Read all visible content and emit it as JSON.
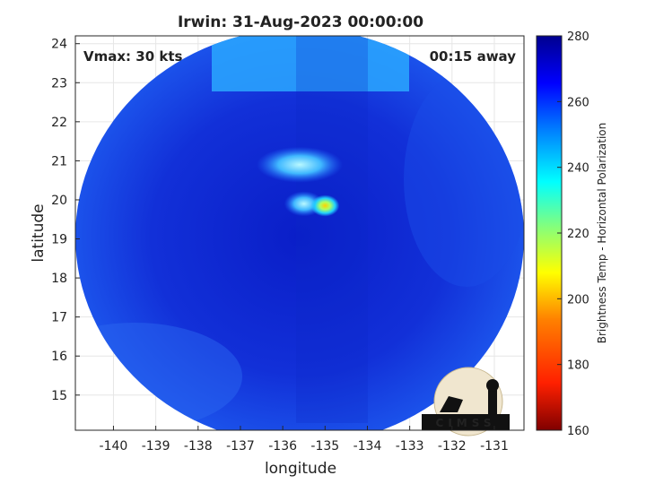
{
  "chart_data": {
    "type": "heatmap",
    "title": "Irwin: 31-Aug-2023 00:00:00",
    "xlabel": "longitude",
    "ylabel": "latitude",
    "x_ticks": [
      -140,
      -139,
      -138,
      -137,
      -136,
      -135,
      -134,
      -133,
      -132,
      -131
    ],
    "y_ticks": [
      15,
      16,
      17,
      18,
      19,
      20,
      21,
      22,
      23,
      24
    ],
    "xlim": [
      -140.9,
      -130.3
    ],
    "ylim": [
      14.1,
      24.2
    ],
    "grid": true,
    "annotations": [
      {
        "text": "Vmax: 30 kts",
        "position": "top-left"
      },
      {
        "text": "00:15 away",
        "position": "top-right"
      }
    ],
    "colorbar": {
      "label": "Brightness Temp - Horizontal Polarization",
      "range": [
        160,
        280
      ],
      "ticks": [
        160,
        180,
        200,
        220,
        240,
        260,
        280
      ],
      "colors": [
        "#800000",
        "#ff2000",
        "#ff8000",
        "#ffff00",
        "#80ff80",
        "#00ffff",
        "#0080ff",
        "#0000ff",
        "#00008f"
      ]
    },
    "features": [
      {
        "name": "disc-background",
        "lon": -135.5,
        "lat": 19.2,
        "value": 262
      },
      {
        "name": "warm-core",
        "lon": -135.0,
        "lat": 19.85,
        "value": 205
      },
      {
        "name": "cloud-band",
        "lon": -135.6,
        "lat": 20.9,
        "value": 238
      },
      {
        "name": "cloud-band-2",
        "lon": -135.5,
        "lat": 19.9,
        "value": 236
      },
      {
        "name": "edge-north",
        "lon": -135.2,
        "lat": 23.7,
        "value": 242
      }
    ],
    "logo_text": "CIMSS"
  }
}
